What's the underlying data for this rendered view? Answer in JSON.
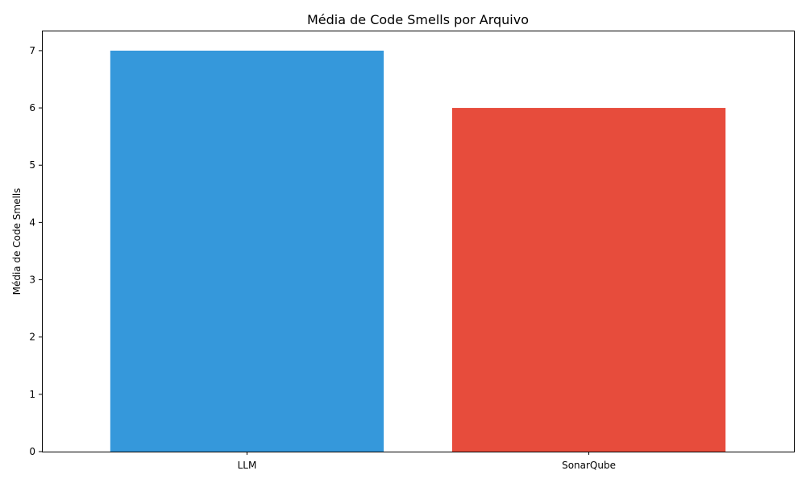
{
  "chart_data": {
    "type": "bar",
    "title": "Média de Code Smells por Arquivo",
    "xlabel": "",
    "ylabel": "Média de Code Smells",
    "categories": [
      "LLM",
      "SonarQube"
    ],
    "values": [
      7,
      6
    ],
    "colors": [
      "#3598db",
      "#e74c3c"
    ],
    "ylim": [
      0,
      7.35
    ],
    "yticks": [
      0,
      1,
      2,
      3,
      4,
      5,
      6,
      7
    ],
    "grid": false,
    "legend": "none"
  }
}
